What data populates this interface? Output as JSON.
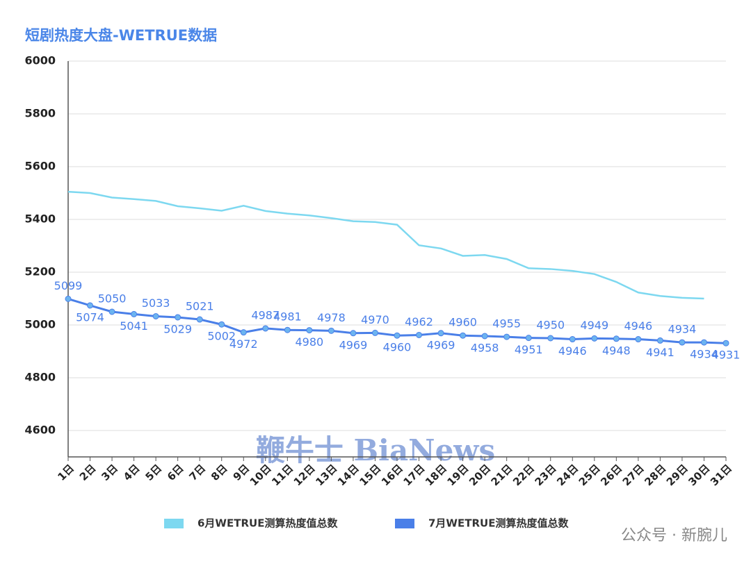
{
  "chart_data": {
    "type": "line",
    "title": "短剧热度大盘-WETRUE数据",
    "categories": [
      "1日",
      "2日",
      "3日",
      "4日",
      "5日",
      "6日",
      "7日",
      "8日",
      "9日",
      "10日",
      "11日",
      "12日",
      "13日",
      "14日",
      "15日",
      "16日",
      "17日",
      "18日",
      "19日",
      "20日",
      "21日",
      "22日",
      "23日",
      "24日",
      "25日",
      "26日",
      "27日",
      "28日",
      "29日",
      "30日",
      "31日"
    ],
    "series": [
      {
        "name": "6月WETRUE测算热度值总数",
        "color": "#7dd8f0",
        "values": [
          5505,
          5500,
          5483,
          5477,
          5470,
          5450,
          5442,
          5433,
          5452,
          5432,
          5422,
          5415,
          5405,
          5393,
          5390,
          5380,
          5302,
          5290,
          5262,
          5265,
          5250,
          5215,
          5212,
          5205,
          5193,
          5163,
          5123,
          5110,
          5103,
          5100,
          null
        ]
      },
      {
        "name": "7月WETRUE测算热度值总数",
        "color": "#4a7fe8",
        "data_labels": true,
        "values": [
          5099,
          5074,
          5050,
          5041,
          5033,
          5029,
          5021,
          5002,
          4972,
          4987,
          4981,
          4980,
          4978,
          4969,
          4970,
          4960,
          4962,
          4969,
          4960,
          4958,
          4955,
          4951,
          4950,
          4946,
          4949,
          4948,
          4946,
          4941,
          4934,
          4934,
          4931
        ]
      }
    ],
    "ylim": [
      4500,
      6000
    ],
    "yticks": [
      4600,
      4800,
      5000,
      5200,
      5400,
      5600,
      5800,
      6000
    ],
    "grid": true,
    "legend": "bottom",
    "annotations": [
      "鞭牛士 BiaNews",
      "公众号 · 新腕儿"
    ]
  }
}
